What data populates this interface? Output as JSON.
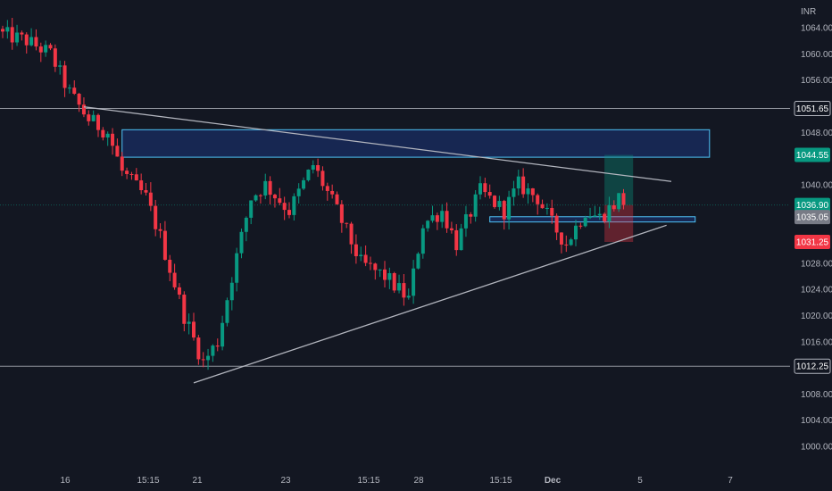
{
  "chart_data": {
    "type": "candlestick",
    "currency": "INR",
    "ylim": [
      997,
      1068
    ],
    "y_ticks": [
      1000,
      1004,
      1008,
      1012.25,
      1016,
      1020,
      1024,
      1028,
      1031.25,
      1035.05,
      1036.9,
      1040,
      1044.55,
      1048,
      1051.65,
      1056,
      1060,
      1064
    ],
    "y_tick_labels": {
      "1000": "1000.00",
      "1004": "1004.00",
      "1008": "1008.00",
      "1016": "1016.00",
      "1020": "1020.00",
      "1024": "1024.00",
      "1028": "1028.00",
      "1040": "1040.00",
      "1048": "1048.00",
      "1056": "1056.00",
      "1060": "1060.00",
      "1064": "1064.00"
    },
    "x_labels": [
      "16",
      "15:15",
      "21",
      "23",
      "15:15",
      "28",
      "15:15",
      "Dec",
      "5",
      "7"
    ],
    "x_label_bold": [
      "Dec"
    ],
    "bar_count": 155,
    "badges": [
      {
        "label": "1051.65",
        "value": 1051.65,
        "style": "outline"
      },
      {
        "label": "1044.55",
        "value": 1044.55,
        "color": "#089981"
      },
      {
        "label": "1036.90",
        "value": 1036.9,
        "color": "#089981"
      },
      {
        "label": "1035.05",
        "value": 1035.05,
        "color": "#787b86"
      },
      {
        "label": "1031.25",
        "value": 1031.25,
        "color": "#f23645"
      },
      {
        "label": "1012.25",
        "value": 1012.25,
        "style": "outline"
      }
    ],
    "horizontal_lines": [
      1051.65,
      1012.25,
      1036.9
    ],
    "zones": [
      {
        "name": "resistance-zone",
        "from_bar": 25,
        "to_bar": 148,
        "low": 1044.2,
        "high": 1048.4,
        "color": "#2962ff"
      },
      {
        "name": "support-zone",
        "from_bar": 102,
        "to_bar": 145,
        "low": 1034.3,
        "high": 1035.1,
        "color": "#2962ff"
      }
    ],
    "trendlines": [
      {
        "name": "upper-trendline",
        "x1": 17,
        "y1": 1051.9,
        "x2": 140,
        "y2": 1040.5
      },
      {
        "name": "lower-trendline",
        "x1": 40,
        "y1": 1009.7,
        "x2": 139,
        "y2": 1033.8
      }
    ],
    "position": {
      "from_bar": 126,
      "to_bar": 132,
      "entry": 1036.9,
      "target": 1044.55,
      "stop": 1031.25
    },
    "anchors": [
      [
        0,
        1063
      ],
      [
        5,
        1062
      ],
      [
        10,
        1060
      ],
      [
        14,
        1054
      ],
      [
        18,
        1050
      ],
      [
        22,
        1048
      ],
      [
        25,
        1042
      ],
      [
        30,
        1038
      ],
      [
        33,
        1032
      ],
      [
        38,
        1020
      ],
      [
        42,
        1012.8
      ],
      [
        45,
        1016
      ],
      [
        48,
        1026
      ],
      [
        52,
        1038
      ],
      [
        55,
        1040
      ],
      [
        60,
        1036
      ],
      [
        65,
        1043
      ],
      [
        70,
        1036
      ],
      [
        75,
        1028
      ],
      [
        80,
        1026
      ],
      [
        85,
        1022.5
      ],
      [
        88,
        1034
      ],
      [
        92,
        1036
      ],
      [
        95,
        1031
      ],
      [
        100,
        1039
      ],
      [
        105,
        1036
      ],
      [
        108,
        1040
      ],
      [
        112,
        1038
      ],
      [
        115,
        1034
      ],
      [
        118,
        1031
      ],
      [
        122,
        1036
      ],
      [
        125,
        1035
      ],
      [
        128,
        1037
      ],
      [
        130,
        1039
      ]
    ],
    "colors": {
      "up": "#089981",
      "down": "#f23645",
      "background": "#131722",
      "axis_text": "#b2b5be",
      "line": "#b2b5be"
    }
  }
}
